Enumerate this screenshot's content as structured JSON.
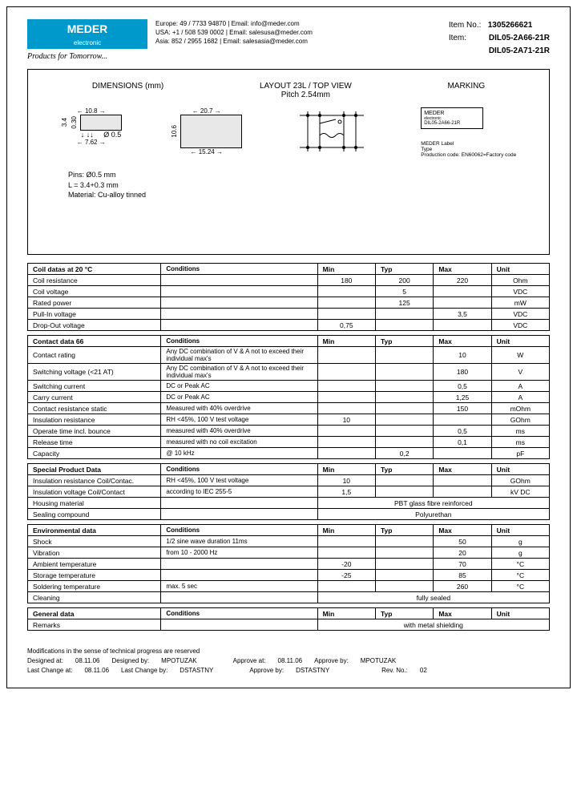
{
  "logo": {
    "main": "MEDER",
    "sub": "electronic",
    "tagline": "Products for Tomorrow..."
  },
  "contact": {
    "europe": "Europe: 49 / 7733 94870 | Email: info@meder.com",
    "usa": "USA: +1 / 508 539 0002 | Email: salesusa@meder.com",
    "asia": "Asia: 852 / 2955 1682 | Email: salesasia@meder.com"
  },
  "item": {
    "no_label": "Item No.:",
    "no": "1305266621",
    "label": "Item:",
    "name1": "DIL05-2A66-21R",
    "name2": "DIL05-2A71-21R"
  },
  "diagram": {
    "dim_title": "DIMENSIONS (mm)",
    "layout_title": "LAYOUT 23L / TOP VIEW",
    "marking_title": "MARKING",
    "pitch": "Pitch 2.54mm",
    "d1": "10.8",
    "d2": "20.7",
    "d3": "3.4",
    "d4": "0.30",
    "d5": "7.62",
    "d6": "Ø 0.5",
    "d7": "10.6",
    "d8": "15.24",
    "pins": "Pins: Ø0.5 mm",
    "len": "L = 3.4+0.3 mm",
    "mat": "Material: Cu-alloy tinned",
    "mark_brand": "MEDER",
    "mark_sub": "electronic",
    "mark_pn": "DIL05-2A66-21R",
    "mark_note": "MEDER Label\nType\nProduction code: EN60062=Factory code"
  },
  "tables": {
    "coil": {
      "title": "Coil datas at 20 °C",
      "rows": [
        {
          "p": "Coil resistance",
          "c": "",
          "min": "180",
          "typ": "200",
          "max": "220",
          "u": "Ohm"
        },
        {
          "p": "Coil voltage",
          "c": "",
          "min": "",
          "typ": "5",
          "max": "",
          "u": "VDC"
        },
        {
          "p": "Rated power",
          "c": "",
          "min": "",
          "typ": "125",
          "max": "",
          "u": "mW"
        },
        {
          "p": "Pull-In voltage",
          "c": "",
          "min": "",
          "typ": "",
          "max": "3,5",
          "u": "VDC"
        },
        {
          "p": "Drop-Out voltage",
          "c": "",
          "min": "0,75",
          "typ": "",
          "max": "",
          "u": "VDC"
        }
      ]
    },
    "contact": {
      "title": "Contact data  66",
      "rows": [
        {
          "p": "Contact rating",
          "c": "Any DC combination of V & A not to exceed their individual max's",
          "min": "",
          "typ": "",
          "max": "10",
          "u": "W"
        },
        {
          "p": "Switching voltage (<21 AT)",
          "c": "Any DC combination of V & A not to exceed their individual max's",
          "min": "",
          "typ": "",
          "max": "180",
          "u": "V"
        },
        {
          "p": "Switching current",
          "c": "DC or Peak AC",
          "min": "",
          "typ": "",
          "max": "0,5",
          "u": "A"
        },
        {
          "p": "Carry current",
          "c": "DC or Peak AC",
          "min": "",
          "typ": "",
          "max": "1,25",
          "u": "A"
        },
        {
          "p": "Contact resistance static",
          "c": "Measured with 40% overdrive",
          "min": "",
          "typ": "",
          "max": "150",
          "u": "mOhm"
        },
        {
          "p": "Insulation resistance",
          "c": "RH <45%, 100 V test voltage",
          "min": "10",
          "typ": "",
          "max": "",
          "u": "GOhm"
        },
        {
          "p": "Operate time incl. bounce",
          "c": "measured with 40% overdrive",
          "min": "",
          "typ": "",
          "max": "0,5",
          "u": "ms"
        },
        {
          "p": "Release time",
          "c": "measured with no coil excitation",
          "min": "",
          "typ": "",
          "max": "0,1",
          "u": "ms"
        },
        {
          "p": "Capacity",
          "c": "@ 10 kHz",
          "min": "",
          "typ": "0,2",
          "max": "",
          "u": "pF"
        }
      ]
    },
    "special": {
      "title": "Special Product Data",
      "rows": [
        {
          "p": "Insulation resistance Coil/Contac.",
          "c": "RH <45%, 100 V test voltage",
          "min": "10",
          "typ": "",
          "max": "",
          "u": "GOhm"
        },
        {
          "p": "Insulation voltage Coil/Contact",
          "c": "according to IEC 255-5",
          "min": "1,5",
          "typ": "",
          "max": "",
          "u": "kV DC"
        },
        {
          "p": "Housing material",
          "span": "PBT glass fibre reinforced"
        },
        {
          "p": "Sealing compound",
          "span": "Polyurethan"
        }
      ]
    },
    "env": {
      "title": "Environmental data",
      "rows": [
        {
          "p": "Shock",
          "c": "1/2 sine wave duration 11ms",
          "min": "",
          "typ": "",
          "max": "50",
          "u": "g"
        },
        {
          "p": "Vibration",
          "c": "from  10 - 2000 Hz",
          "min": "",
          "typ": "",
          "max": "20",
          "u": "g"
        },
        {
          "p": "Ambient temperature",
          "c": "",
          "min": "-20",
          "typ": "",
          "max": "70",
          "u": "°C"
        },
        {
          "p": "Storage temperature",
          "c": "",
          "min": "-25",
          "typ": "",
          "max": "85",
          "u": "°C"
        },
        {
          "p": "Soldering temperature",
          "c": "max. 5 sec",
          "min": "",
          "typ": "",
          "max": "260",
          "u": "°C"
        },
        {
          "p": "Cleaning",
          "span": "fully sealed"
        }
      ]
    },
    "general": {
      "title": "General data",
      "rows": [
        {
          "p": "Remarks",
          "span": "with metal shielding"
        }
      ]
    },
    "headers": {
      "cond": "Conditions",
      "min": "Min",
      "typ": "Typ",
      "max": "Max",
      "unit": "Unit"
    }
  },
  "footer": {
    "mod": "Modifications in the sense of technical progress are reserved",
    "designed": "Designed at:",
    "designed_d": "08.11.06",
    "designed_by": "Designed by:",
    "designed_n": "MPOTUZAK",
    "approve": "Approve at:",
    "approve_d": "08.11.06",
    "approve_by": "Approve by:",
    "approve_n": "MPOTUZAK",
    "change": "Last Change at:",
    "change_d": "08.11.06",
    "change_by": "Last Change by:",
    "change_n": "DSTASTNY",
    "approve2_by": "Approve by:",
    "approve2_n": "DSTASTNY",
    "rev": "Rev. No.:",
    "rev_n": "02"
  }
}
